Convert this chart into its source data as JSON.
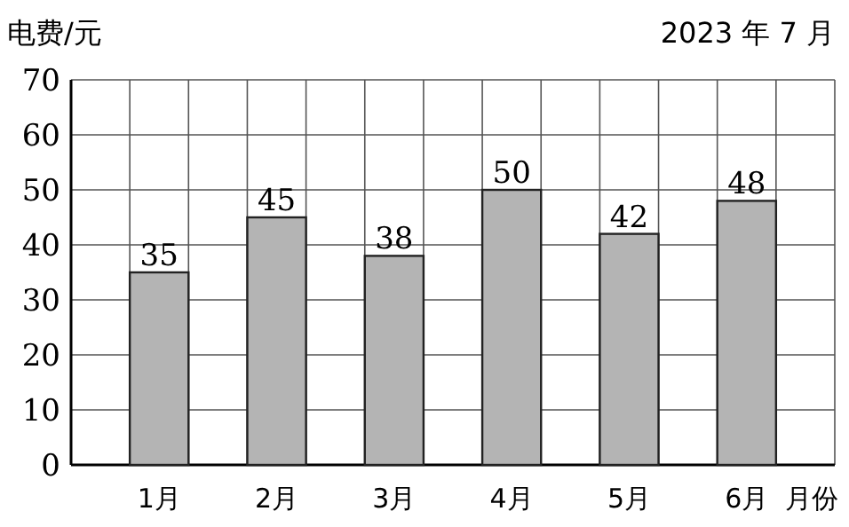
{
  "chart_data": {
    "type": "bar",
    "title": "2023 年 7 月",
    "ylabel": "电费/元",
    "xlabel": "月份",
    "categories": [
      "1月",
      "2月",
      "3月",
      "4月",
      "5月",
      "6月"
    ],
    "values": [
      35,
      45,
      38,
      50,
      42,
      48
    ],
    "color": "#b4b4b4",
    "ylim": [
      0,
      70
    ],
    "yticks": [
      0,
      10,
      20,
      30,
      40,
      50,
      60,
      70
    ],
    "grid": true,
    "data_labels": true
  }
}
